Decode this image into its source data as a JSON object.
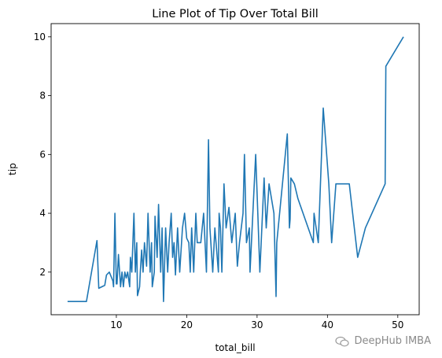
{
  "chart_data": {
    "type": "line",
    "title": "Line Plot of Tip Over Total Bill",
    "xlabel": "total_bill",
    "ylabel": "tip",
    "xlim": [
      0.73,
      53.04
    ],
    "ylim": [
      0.55,
      10.45
    ],
    "xticks": [
      10,
      20,
      30,
      40,
      50
    ],
    "yticks": [
      2,
      4,
      6,
      8,
      10
    ],
    "grid": false,
    "series": [
      {
        "color": "#1f77b4",
        "x": [
          3.07,
          5.75,
          7.25,
          7.5,
          8.35,
          8.6,
          9.0,
          9.5,
          9.6,
          9.8,
          10.0,
          10.1,
          10.3,
          10.6,
          10.8,
          11.0,
          11.2,
          11.4,
          11.6,
          11.9,
          12.0,
          12.2,
          12.5,
          12.7,
          12.9,
          13.0,
          13.1,
          13.3,
          13.4,
          13.6,
          13.8,
          14.0,
          14.3,
          14.5,
          14.8,
          15.0,
          15.1,
          15.4,
          15.5,
          15.8,
          16.0,
          16.3,
          16.5,
          16.7,
          17.0,
          17.3,
          17.5,
          17.8,
          18.0,
          18.2,
          18.4,
          18.7,
          19.0,
          19.4,
          19.7,
          20.0,
          20.3,
          20.5,
          20.7,
          21.0,
          21.3,
          21.5,
          22.0,
          22.4,
          22.8,
          23.1,
          23.3,
          23.7,
          24.0,
          24.5,
          24.6,
          24.8,
          25.0,
          25.3,
          25.6,
          26.0,
          26.4,
          26.9,
          27.2,
          27.5,
          28.0,
          28.2,
          28.5,
          28.9,
          29.0,
          29.8,
          30.1,
          30.4,
          31.0,
          31.3,
          31.7,
          32.4,
          32.7,
          32.8,
          34.3,
          34.6,
          34.7,
          34.8,
          35.3,
          35.8,
          38.0,
          38.1,
          38.7,
          39.4,
          40.2,
          40.6,
          41.2,
          43.1,
          44.3,
          45.4,
          48.2,
          48.3,
          50.8
        ],
        "y": [
          1.0,
          1.0,
          3.07,
          1.45,
          1.55,
          1.9,
          2.0,
          1.7,
          1.5,
          4.0,
          1.6,
          1.6,
          2.6,
          1.5,
          2.0,
          1.5,
          2.0,
          1.8,
          2.0,
          1.5,
          2.5,
          2.0,
          4.0,
          2.0,
          3.0,
          1.2,
          1.3,
          1.5,
          2.0,
          2.75,
          2.0,
          3.0,
          2.2,
          4.0,
          2.0,
          3.0,
          1.5,
          2.0,
          3.9,
          2.5,
          4.3,
          2.0,
          3.5,
          1.0,
          3.5,
          2.0,
          3.0,
          4.0,
          2.5,
          3.0,
          1.9,
          3.5,
          2.0,
          3.5,
          4.0,
          3.15,
          3.0,
          2.0,
          3.5,
          2.0,
          4.0,
          3.0,
          3.0,
          4.0,
          2.0,
          6.5,
          3.5,
          2.0,
          3.5,
          2.0,
          4.0,
          3.5,
          2.0,
          5.0,
          3.5,
          4.2,
          3.0,
          4.0,
          2.2,
          3.0,
          4.0,
          6.0,
          3.0,
          3.5,
          2.0,
          6.0,
          4.0,
          2.0,
          5.2,
          3.5,
          5.0,
          4.0,
          1.17,
          3.0,
          6.7,
          3.5,
          3.8,
          5.2,
          5.0,
          4.5,
          3.0,
          4.0,
          3.0,
          7.58,
          5.0,
          3.0,
          5.0,
          5.0,
          2.5,
          3.5,
          5.0,
          9.0,
          10.0
        ]
      }
    ]
  },
  "watermark": {
    "text": "DeepHub IMBA"
  }
}
